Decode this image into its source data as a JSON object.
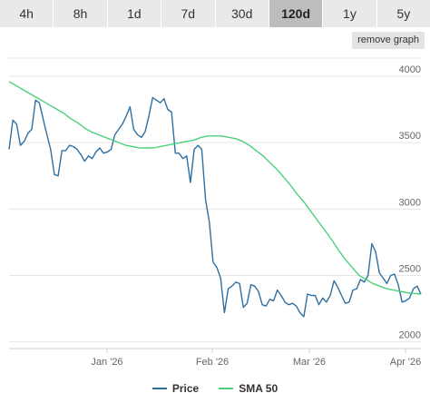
{
  "tabs": [
    {
      "label": "4h"
    },
    {
      "label": "8h"
    },
    {
      "label": "1d"
    },
    {
      "label": "7d"
    },
    {
      "label": "30d"
    },
    {
      "label": "120d",
      "active": true
    },
    {
      "label": "1y"
    },
    {
      "label": "5y"
    }
  ],
  "remove_graph_label": "remove graph",
  "legend": [
    {
      "label": "Price",
      "color": "#2f6f9f"
    },
    {
      "label": "SMA 50",
      "color": "#4cd07d"
    }
  ],
  "chart_data": {
    "type": "line",
    "x_ticks": [
      "Jan '26",
      "Feb '26",
      "Mar '26",
      "Apr '26"
    ],
    "y_ticks": [
      2000,
      2500,
      3000,
      3500,
      4000
    ],
    "ylim": [
      1950,
      4150
    ],
    "grid": true,
    "legend_position": "bottom-center",
    "series": [
      {
        "name": "Price",
        "color": "#2f6f9f",
        "values": [
          3450,
          3670,
          3640,
          3480,
          3510,
          3570,
          3600,
          3820,
          3800,
          3680,
          3560,
          3450,
          3260,
          3250,
          3440,
          3440,
          3480,
          3470,
          3450,
          3410,
          3360,
          3400,
          3380,
          3430,
          3460,
          3420,
          3430,
          3450,
          3560,
          3600,
          3640,
          3700,
          3770,
          3600,
          3560,
          3540,
          3580,
          3700,
          3840,
          3820,
          3800,
          3830,
          3750,
          3730,
          3420,
          3420,
          3380,
          3400,
          3200,
          3450,
          3480,
          3450,
          3070,
          2900,
          2600,
          2560,
          2480,
          2220,
          2400,
          2420,
          2450,
          2440,
          2260,
          2290,
          2430,
          2420,
          2380,
          2280,
          2270,
          2320,
          2310,
          2390,
          2350,
          2300,
          2280,
          2290,
          2270,
          2220,
          2190,
          2360,
          2350,
          2350,
          2280,
          2330,
          2300,
          2350,
          2460,
          2410,
          2350,
          2290,
          2300,
          2390,
          2400,
          2470,
          2450,
          2500,
          2740,
          2680,
          2520,
          2480,
          2440,
          2500,
          2510,
          2430,
          2300,
          2310,
          2330,
          2400,
          2420,
          2360
        ]
      },
      {
        "name": "SMA 50",
        "color": "#4cd07d",
        "values": [
          3960,
          3930,
          3900,
          3870,
          3840,
          3810,
          3780,
          3750,
          3720,
          3680,
          3650,
          3610,
          3580,
          3560,
          3540,
          3520,
          3500,
          3480,
          3470,
          3460,
          3460,
          3460,
          3470,
          3480,
          3490,
          3500,
          3510,
          3520,
          3540,
          3550,
          3550,
          3550,
          3540,
          3530,
          3510,
          3480,
          3440,
          3400,
          3350,
          3300,
          3240,
          3180,
          3110,
          3050,
          2980,
          2910,
          2840,
          2770,
          2690,
          2620,
          2560,
          2500,
          2470,
          2440,
          2420,
          2400,
          2390,
          2380,
          2370,
          2365,
          2360
        ]
      }
    ]
  }
}
